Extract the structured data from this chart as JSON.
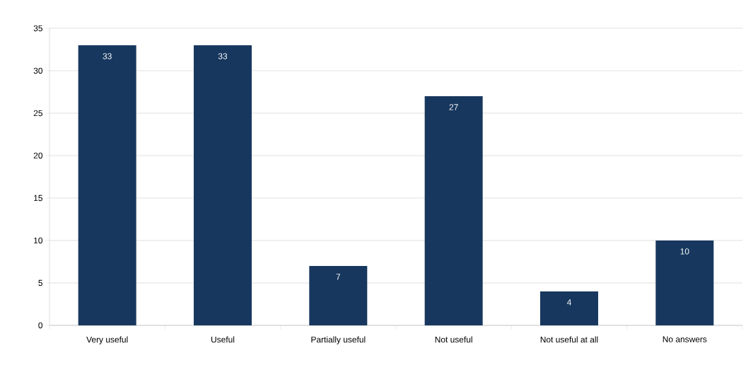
{
  "chart_data": {
    "type": "bar",
    "categories": [
      "Very useful",
      "Useful",
      "Partially useful",
      "Not useful",
      "Not useful at all",
      "No answers"
    ],
    "values": [
      33,
      33,
      7,
      27,
      4,
      10
    ],
    "color": "#17375e",
    "ylim": [
      0,
      35
    ],
    "yticks": [
      0,
      5,
      10,
      15,
      20,
      25,
      30,
      35
    ],
    "grid": "y",
    "data_labels": true
  }
}
